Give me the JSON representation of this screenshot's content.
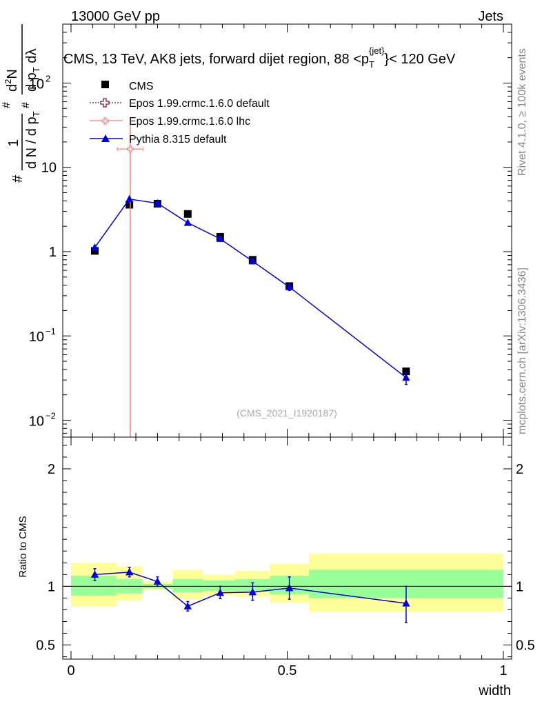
{
  "header": {
    "left": "13000 GeV pp",
    "right": "Jets"
  },
  "side_labels": {
    "rivet": "Rivet 4.1.0, ≥ 100k events",
    "mcplots": "mcplots.cern.ch [arXiv:1306.3436]"
  },
  "chart_data": [
    {
      "type": "scatter",
      "panel": "main",
      "title": "CMS, 13 TeV, AK8 jets, forward dijet region, 88 <p_T^{jet}> < 120 GeV",
      "title_parts": {
        "main": "CMS, 13 TeV, AK8 jets, forward dijet region, 88 <p",
        "sub": "T",
        "sup": "{jet}",
        "tail": "}< 120 GeV"
      },
      "ylabel": "1/(dN/dp_T) d²N/(dp_T dλ)",
      "ylabel_parts": {
        "one": "1",
        "denom_a": "d N / d p",
        "denom_t": "T",
        "num_a": "d",
        "num_sup": "2",
        "num_b": "N",
        "den2_a": "d p",
        "den2_t": "T",
        "den2_b": " dλ",
        "hash": "#"
      },
      "watermark": "(CMS_2021_I1920187)",
      "xlim": [
        0,
        1
      ],
      "ylim": [
        0.0063,
        500
      ],
      "yscale": "log",
      "ytick_labels": [
        {
          "value": 0.01,
          "base": "10",
          "exp": "−2"
        },
        {
          "value": 0.1,
          "base": "10",
          "exp": "−1"
        },
        {
          "value": 1,
          "text": "1"
        },
        {
          "value": 10,
          "text": "10"
        },
        {
          "value": 100,
          "base": "10",
          "exp": "2"
        }
      ],
      "legend": [
        {
          "name": "CMS",
          "marker": "square",
          "color": "#000000"
        },
        {
          "name": "Epos 1.99.crmc.1.6.0 default",
          "marker": "open-cross",
          "color": "#7b1a33"
        },
        {
          "name": "Epos 1.99.crmc.1.6.0 lhc",
          "marker": "open-cross",
          "color": "#f08080"
        },
        {
          "name": "Pythia 8.315 default",
          "marker": "triangle",
          "color": "#0000dd"
        }
      ],
      "series": [
        {
          "name": "CMS",
          "color": "#000000",
          "x": [
            0.055,
            0.135,
            0.2,
            0.27,
            0.345,
            0.42,
            0.505,
            0.775
          ],
          "y": [
            1.02,
            3.6,
            3.7,
            2.8,
            1.5,
            0.8,
            0.39,
            0.038
          ]
        },
        {
          "name": "Epos 1.99.crmc.1.6.0 lhc",
          "color": "#f08080",
          "x": [
            0.137
          ],
          "xerr": [
            0.03
          ],
          "y": [
            16.5
          ],
          "ylow": [
            0.0063
          ],
          "yhigh": [
            33
          ]
        },
        {
          "name": "Pythia 8.315 default",
          "color": "#0000dd",
          "x": [
            0.055,
            0.135,
            0.2,
            0.27,
            0.345,
            0.42,
            0.505,
            0.775
          ],
          "y": [
            1.12,
            4.2,
            3.75,
            2.2,
            1.42,
            0.77,
            0.38,
            0.032
          ],
          "yerr_rel": [
            0.05,
            0.03,
            0.03,
            0.04,
            0.04,
            0.07,
            0.09,
            0.17
          ]
        }
      ]
    },
    {
      "type": "scatter",
      "panel": "ratio",
      "ylabel": "Ratio to CMS",
      "xlabel": "width",
      "xlim": [
        0,
        1
      ],
      "ylim": [
        0.38,
        2.27
      ],
      "xtick_labels": [
        "0",
        "0.5",
        "1"
      ],
      "ytick_labels": [
        "0.5",
        "1",
        "2"
      ],
      "bands": [
        {
          "x0": 0.0,
          "x1": 0.105,
          "yellow": [
            0.83,
            1.2
          ],
          "green": [
            0.92,
            1.09
          ]
        },
        {
          "x0": 0.105,
          "x1": 0.165,
          "yellow": [
            0.88,
            1.17
          ],
          "green": [
            0.94,
            1.06
          ]
        },
        {
          "x0": 0.165,
          "x1": 0.235,
          "yellow": [
            0.97,
            1.04
          ],
          "green": [
            0.985,
            1.02
          ]
        },
        {
          "x0": 0.235,
          "x1": 0.305,
          "yellow": [
            0.89,
            1.14
          ],
          "green": [
            0.95,
            1.06
          ]
        },
        {
          "x0": 0.305,
          "x1": 0.38,
          "yellow": [
            0.92,
            1.1
          ],
          "green": [
            0.96,
            1.05
          ]
        },
        {
          "x0": 0.38,
          "x1": 0.46,
          "yellow": [
            0.91,
            1.13
          ],
          "green": [
            0.955,
            1.06
          ]
        },
        {
          "x0": 0.46,
          "x1": 0.55,
          "yellow": [
            0.86,
            1.19
          ],
          "green": [
            0.93,
            1.09
          ]
        },
        {
          "x0": 0.55,
          "x1": 1.0,
          "yellow": [
            0.78,
            1.28
          ],
          "green": [
            0.9,
            1.14
          ]
        }
      ],
      "series": [
        {
          "name": "Pythia 8.315 default / CMS",
          "color": "#0000dd",
          "x": [
            0.055,
            0.135,
            0.2,
            0.27,
            0.345,
            0.42,
            0.505,
            0.775
          ],
          "y": [
            1.1,
            1.12,
            1.04,
            0.83,
            0.945,
            0.95,
            0.985,
            0.855
          ],
          "ylow": [
            1.05,
            1.08,
            1.0,
            0.79,
            0.895,
            0.88,
            0.89,
            0.69
          ],
          "yhigh": [
            1.15,
            1.16,
            1.08,
            0.87,
            1.0,
            1.03,
            1.08,
            1.0
          ]
        }
      ]
    }
  ]
}
